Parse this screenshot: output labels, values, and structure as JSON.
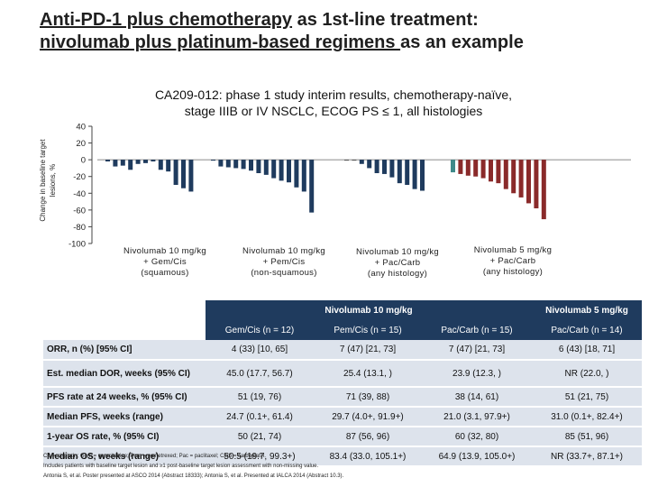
{
  "header": {
    "title_part1": "Anti-PD-1 plus chemotherapy",
    "title_part2": " as 1st-line treatment:",
    "title_line2_ul": "nivolumab plus platinum-based regimens ",
    "title_line2_rest": "as an example"
  },
  "colors": {
    "nivo10": "#1f3b5e",
    "nivo10_highlight": "#3a6ea5",
    "nivo5": "#8a2a2a",
    "nivo5_highlight": "#3f8a8a",
    "neutral_bar": "#5a5a5a",
    "table_header": "#1f3b5e",
    "table_row": "#dde3ec"
  },
  "chart_data": {
    "type": "bar",
    "title_line1": "CA209-012: phase 1 study interim results, chemotherapy-naïve,",
    "title_line2": "stage IIIB or IV NSCLC, ECOG PS ≤ 1, all histologies",
    "ylabel_line1": "Change in baseline target",
    "ylabel_line2": "lesions, %",
    "ylim": [
      -100,
      40
    ],
    "yticks": [
      "40",
      "20",
      "0",
      "-20",
      "-40",
      "-60",
      "-80",
      "-100"
    ],
    "groups": [
      {
        "label_lines": [
          "Nivolumab 10 mg/kg",
          "+ Gem/Cis",
          "(squamous)"
        ],
        "values": [
          -2,
          -8,
          -7,
          -12,
          -5,
          -4,
          -2,
          -12,
          -14,
          -30,
          -34,
          -38
        ]
      },
      {
        "label_lines": [
          "Nivolumab 10 mg/kg",
          "+ Pem/Cis",
          "(non-squamous)"
        ],
        "values": [
          -1,
          -8,
          -9,
          -10,
          -11,
          -13,
          -16,
          -18,
          -22,
          -25,
          -27,
          -33,
          -38,
          -63
        ]
      },
      {
        "label_lines": [
          "Nivolumab 10 mg/kg",
          "+ Pac/Carb",
          "(any histology)"
        ],
        "values": [
          -1,
          -1,
          -5,
          -10,
          -16,
          -17,
          -21,
          -28,
          -30,
          -35,
          -37
        ]
      },
      {
        "label_lines": [
          "Nivolumab 5 mg/kg",
          "+ Pac/Carb",
          "(any histology)"
        ],
        "values": [
          -15,
          -17,
          -19,
          -20,
          -22,
          -26,
          -28,
          -35,
          -40,
          -45,
          -52,
          -58,
          -71
        ]
      }
    ]
  },
  "table": {
    "group_headers": [
      "Nivolumab 10 mg/kg",
      "Nivolumab 5 mg/kg"
    ],
    "columns": [
      "Gem/Cis (n = 12)",
      "Pem/Cis (n = 15)",
      "Pac/Carb (n = 15)",
      "Pac/Carb (n = 14)"
    ],
    "rows": [
      {
        "label": "ORR, n (%) [95% CI]",
        "values": [
          "4 (33) [10, 65]",
          "7 (47) [21, 73]",
          "7 (47) [21, 73]",
          "6 (43) [18, 71]"
        ]
      },
      {
        "label": "Est. median DOR, weeks (95% CI)",
        "values": [
          "45.0 (17.7, 56.7)",
          "25.4 (13.1, )",
          "23.9 (12.3, )",
          "NR (22.0, )"
        ]
      },
      {
        "label": "PFS rate at 24 weeks, % (95% CI)",
        "values": [
          "51 (19, 76)",
          "71 (39, 88)",
          "38 (14, 61)",
          "51 (21, 75)"
        ]
      },
      {
        "label": "Median PFS, weeks (range)",
        "values": [
          "24.7 (0.1+, 61.4)",
          "29.7 (4.0+, 91.9+)",
          "21.0 (3.1, 97.9+)",
          "31.0 (0.1+, 82.4+)"
        ]
      },
      {
        "label": "1-year OS rate, % (95% CI)",
        "values": [
          "50 (21, 74)",
          "87 (56, 96)",
          "60 (32, 80)",
          "85 (51, 96)"
        ]
      },
      {
        "label": "Median OS, weeks (range)",
        "values": [
          "50.5 (19.7, 99.3+)",
          "83.4 (33.0, 105.1+)",
          "64.9 (13.9, 105.0+)",
          "NR (33.7+, 87.1+)"
        ]
      }
    ]
  },
  "footnotes": {
    "abbrev": "CIs = cisplatin; Gem = gemcitabine; Pem = pemetrexed; Pac = paclitaxel; Carb = carboplatin.",
    "note": "Includes patients with baseline target lesion and ≥1 post-baseline target lesion assessment with non-missing value.",
    "refs": "Antonia S, et al. Poster presented at ASCO 2014 (Abstract 18333); Antonia S, et al. Presented at IALCA 2014 (Abstract 10.3)."
  }
}
